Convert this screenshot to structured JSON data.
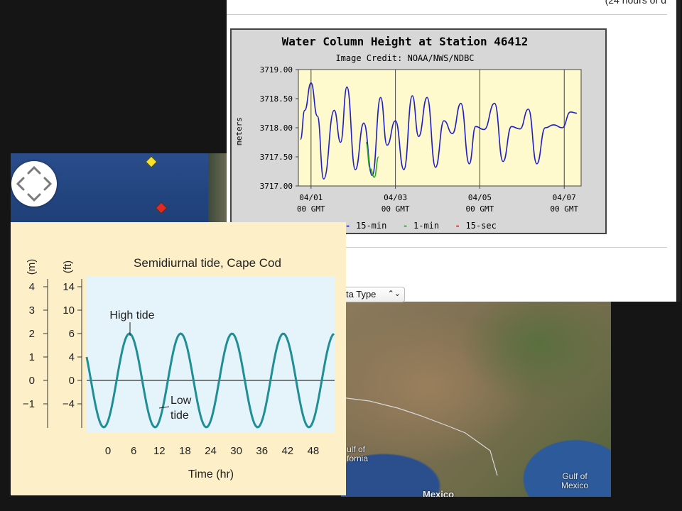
{
  "browser": {
    "header_partial_text": "(24 hours of d",
    "data_type_label": "ta Type",
    "data_type_arrow": "⌃⌄"
  },
  "ndbc_chart": {
    "title": "Water Column Height at Station 46412",
    "credit": "Image Credit: NOAA/NWS/NDBC",
    "ylabel": "meters",
    "ytick_labels": [
      "3719.00",
      "3718.50",
      "3718.00",
      "3717.50",
      "3717.00"
    ],
    "xtick_labels": [
      [
        "04/01",
        "00 GMT"
      ],
      [
        "04/03",
        "00 GMT"
      ],
      [
        "04/05",
        "00 GMT"
      ],
      [
        "04/07",
        "00 GMT"
      ]
    ],
    "legend": [
      {
        "symbol": "-",
        "label": "15-min",
        "color": "#1f1fc8"
      },
      {
        "symbol": "-",
        "label": "1-min",
        "color": "#22aa22"
      },
      {
        "symbol": "-",
        "label": "15-sec",
        "color": "#dd2222"
      }
    ],
    "colors": {
      "plot_bg": "#fffacd",
      "line_15min": "#1f1fc8",
      "line_1min": "#22aa22"
    }
  },
  "tide_chart": {
    "title": "Semidiurnal tide, Cape Cod",
    "xlabel": "Time (hr)",
    "m_label": "(m)",
    "ft_label": "(ft)",
    "m_ticks": [
      "4",
      "3",
      "2",
      "1",
      "0",
      "−1"
    ],
    "ft_ticks": [
      "14",
      "10",
      "6",
      "4",
      "0",
      "−4"
    ],
    "x_ticks": [
      "0",
      "6",
      "12",
      "18",
      "24",
      "30",
      "36",
      "42",
      "48"
    ],
    "annotations": {
      "high": "High tide",
      "low_1": "Low",
      "low_2": "tide"
    },
    "colors": {
      "card_bg": "#fdf0c9",
      "plot_bg": "#e5f4fa",
      "curve": "#1f8f95"
    }
  },
  "map": {
    "labels": {
      "gulf_cal_1": "ulf of",
      "gulf_cal_2": "fornia",
      "gulf_mex_1": "Gulf of",
      "gulf_mex_2": "Mexico",
      "mexico": "Mexico"
    },
    "markers": [
      {
        "name": "yellow-marker",
        "color": "#f5e12a"
      },
      {
        "name": "red-marker",
        "color": "#e22a22"
      }
    ]
  },
  "chart_data": [
    {
      "type": "line",
      "title": "Water Column Height at Station 46412",
      "ylabel": "meters",
      "ylim": [
        3717.0,
        3719.0
      ],
      "x_unit": "days since 04/01 00 GMT",
      "xlim": [
        -0.3,
        6.4
      ],
      "series": [
        {
          "name": "15-min",
          "x": [
            -0.25,
            -0.15,
            0.0,
            0.15,
            0.3,
            0.55,
            0.7,
            0.85,
            1.05,
            1.25,
            1.45,
            1.65,
            1.8,
            2.0,
            2.2,
            2.4,
            2.55,
            2.75,
            2.95,
            3.15,
            3.35,
            3.55,
            3.75,
            3.9,
            4.1,
            4.35,
            4.55,
            4.75,
            4.95,
            5.15,
            5.35,
            5.55,
            5.75,
            5.95,
            6.15,
            6.3
          ],
          "y": [
            3717.8,
            3718.3,
            3718.77,
            3718.2,
            3717.12,
            3718.3,
            3717.75,
            3718.7,
            3717.28,
            3718.08,
            3717.18,
            3718.52,
            3717.7,
            3718.12,
            3717.28,
            3718.55,
            3717.85,
            3718.52,
            3717.32,
            3718.12,
            3717.9,
            3718.42,
            3717.38,
            3718.02,
            3717.97,
            3718.42,
            3717.42,
            3718.02,
            3717.98,
            3718.32,
            3717.38,
            3718.0,
            3718.05,
            3718.0,
            3718.27,
            3718.25
          ]
        },
        {
          "name": "1-min",
          "x": [
            1.3,
            1.4,
            1.5,
            1.6
          ],
          "y": [
            3717.75,
            3717.3,
            3717.15,
            3717.5
          ]
        },
        {
          "name": "15-sec",
          "x": [],
          "y": []
        }
      ]
    },
    {
      "type": "line",
      "title": "Semidiurnal tide, Cape Cod",
      "xlabel": "Time (hr)",
      "ylabel": "(ft)",
      "xlim": [
        -5,
        53
      ],
      "series": [
        {
          "name": "tide",
          "x": [
            -5,
            -1,
            5,
            11,
            17,
            23,
            29,
            35,
            41,
            47,
            53
          ],
          "y": [
            2,
            -4,
            6,
            -6,
            6,
            -6,
            6,
            -6,
            6,
            -6,
            6
          ]
        }
      ],
      "annotations": [
        {
          "text": "High tide",
          "x": 5,
          "y": 6
        },
        {
          "text": "Low tide",
          "x": 11,
          "y": -6
        }
      ]
    }
  ]
}
